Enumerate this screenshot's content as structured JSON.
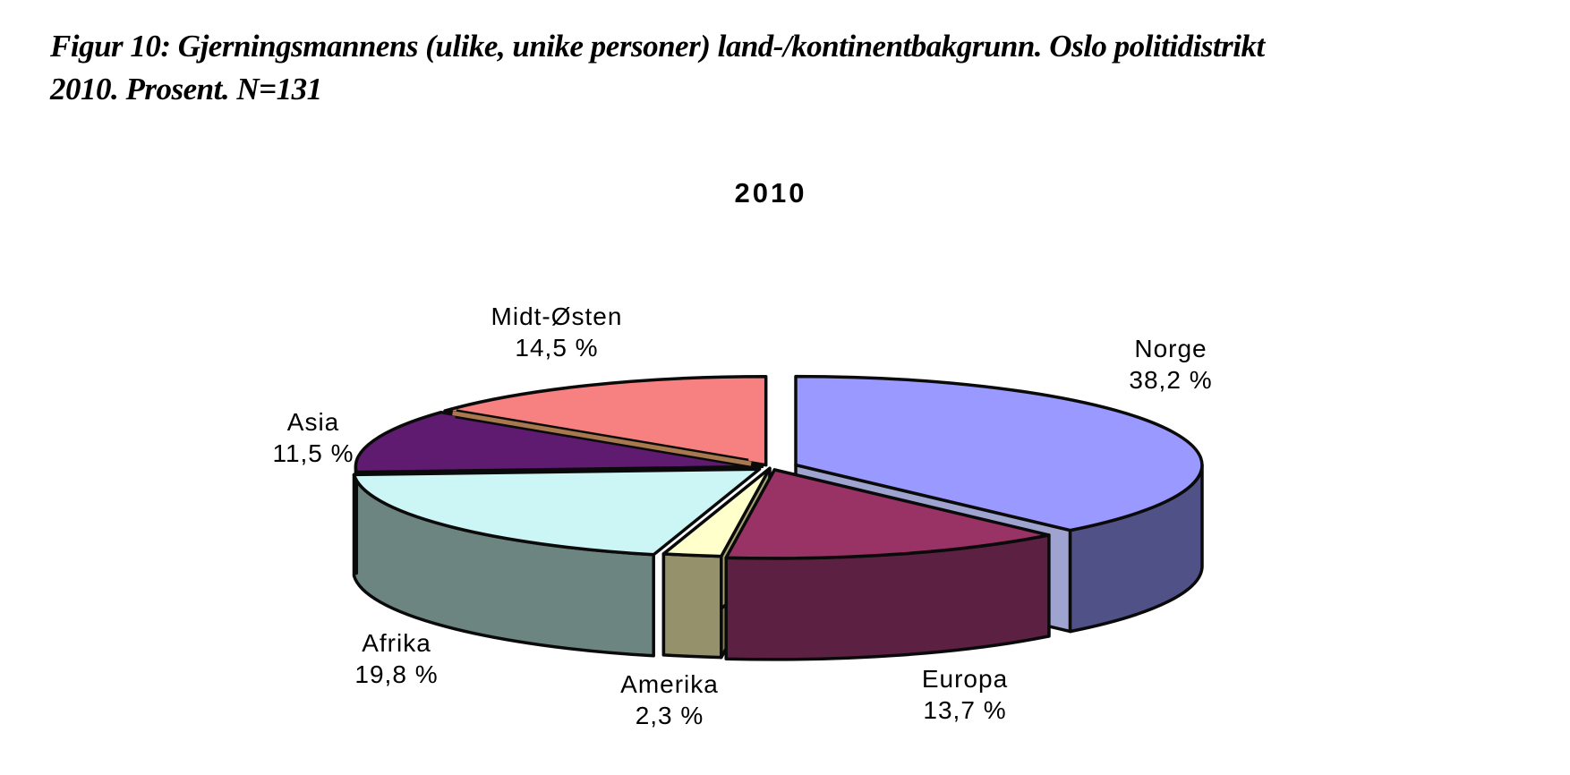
{
  "figure_caption": {
    "line1": "Figur 10: Gjerningsmannens (ulike, unike personer) land-/kontinentbakgrunn. Oslo politidistrikt",
    "line2": "2010. Prosent. N=131"
  },
  "chart_data": {
    "type": "pie",
    "style": "3d-exploded",
    "title": "2010",
    "unit": "percent",
    "n_label": "N=131",
    "start_angle_deg": 0,
    "direction": "clockwise",
    "outline_color": "#0a0a0a",
    "gap_fill_color": "#a8784e",
    "slices": [
      {
        "label": "Norge",
        "value": 38.2,
        "pct_label": "38,2 %",
        "top_color": "#9999ff",
        "side_color": "#4f5187",
        "cut_color": "#9fa3cf"
      },
      {
        "label": "Europa",
        "value": 13.7,
        "pct_label": "13,7 %",
        "top_color": "#993366",
        "side_color": "#5c2142",
        "cut_color": "#7a2a55"
      },
      {
        "label": "Amerika",
        "value": 2.3,
        "pct_label": "2,3 %",
        "top_color": "#ffffcc",
        "side_color": "#95926b",
        "cut_color": "#a8a578"
      },
      {
        "label": "Afrika",
        "value": 19.8,
        "pct_label": "19,8 %",
        "top_color": "#ccf6f6",
        "side_color": "#6d8580",
        "cut_color": "#6d8580"
      },
      {
        "label": "Asia",
        "value": 11.5,
        "pct_label": "11,5 %",
        "top_color": "#5e1b70",
        "side_color": "#38103f",
        "cut_color": "#38103f"
      },
      {
        "label": "Midt-Østen",
        "value": 14.5,
        "pct_label": "14,5 %",
        "top_color": "#f78181",
        "side_color": "#a8784e",
        "cut_color": "#a8784e"
      }
    ]
  }
}
